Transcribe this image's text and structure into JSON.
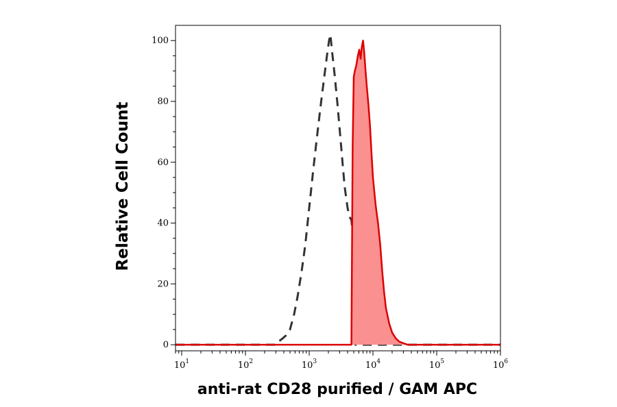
{
  "chart_data": {
    "type": "area",
    "title": "",
    "xlabel": "anti-rat CD28 purified / GAM APC",
    "ylabel": "Relative Cell Count",
    "xscale": "log",
    "xlim": [
      8,
      1000000
    ],
    "ylim": [
      -2,
      105
    ],
    "grid": false,
    "legend": "none",
    "x_ticks": [
      {
        "base": "10",
        "exp": "1",
        "value": 10
      },
      {
        "base": "10",
        "exp": "2",
        "value": 100
      },
      {
        "base": "10",
        "exp": "3",
        "value": 1000
      },
      {
        "base": "10",
        "exp": "4",
        "value": 10000
      },
      {
        "base": "10",
        "exp": "5",
        "value": 100000
      },
      {
        "base": "10",
        "exp": "6",
        "value": 1000000
      }
    ],
    "y_ticks": [
      "0",
      "20",
      "40",
      "60",
      "80",
      "100"
    ],
    "series": [
      {
        "style": "dashed",
        "color": "#333333",
        "x": [
          8,
          300,
          330,
          380,
          430,
          500,
          580,
          660,
          760,
          870,
          1000,
          1150,
          1320,
          1500,
          1700,
          1900,
          2050,
          2150,
          2300,
          2500,
          2750,
          3000,
          3300,
          3600,
          4000,
          4300,
          4600,
          4750,
          4900,
          5000,
          5100,
          5300,
          1000000
        ],
        "y": [
          0,
          0,
          1,
          2,
          3,
          5,
          10,
          16,
          24,
          33,
          45,
          57,
          68,
          78,
          87,
          95,
          100,
          102,
          96,
          89,
          80,
          71,
          61,
          52,
          45,
          42,
          41,
          38,
          30,
          15,
          5,
          0,
          0
        ]
      },
      {
        "style": "filled",
        "color": "#dd0000",
        "fill": "#fa9090",
        "x": [
          8,
          4600,
          4800,
          5000,
          5200,
          5500,
          5800,
          6100,
          6400,
          6700,
          7000,
          7300,
          7600,
          8000,
          8500,
          9000,
          9500,
          10000,
          11000,
          12000,
          13000,
          14000,
          15000,
          16000,
          18000,
          20000,
          23000,
          26000,
          30000,
          35000,
          1000000
        ],
        "y": [
          0,
          0,
          65,
          88,
          90,
          92,
          95,
          97,
          94,
          98,
          100,
          96,
          91,
          85,
          79,
          72,
          63,
          55,
          46,
          40,
          33,
          24,
          17,
          12,
          7,
          4,
          2,
          1,
          0.5,
          0,
          0
        ]
      }
    ]
  }
}
